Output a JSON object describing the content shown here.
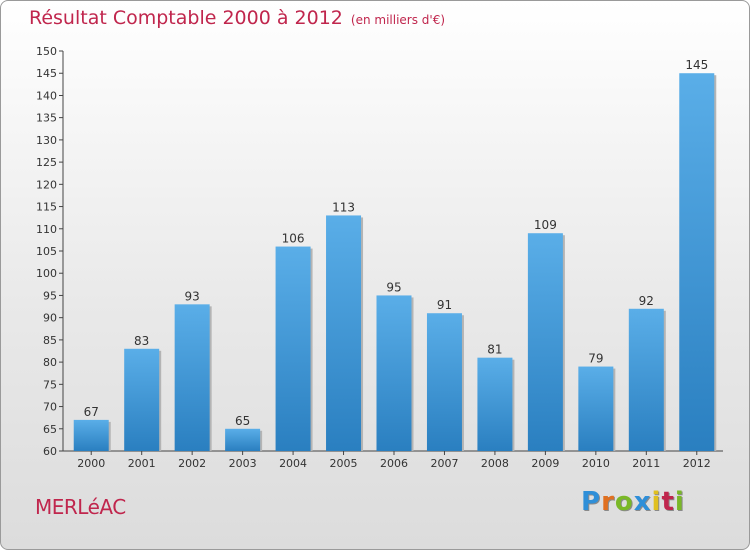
{
  "header": {
    "title": "Résultat Comptable 2000 à 2012",
    "subtitle": "(en milliers d'€)"
  },
  "footer": {
    "commune": "MERLéAC",
    "logo_text": "Proxiti"
  },
  "colors": {
    "title": "#c0264d",
    "bar_top": "#5aaee8",
    "bar_bottom": "#2a7fc0",
    "logo": [
      "#2f8fd8",
      "#e07020",
      "#7ab828",
      "#2f8fd8",
      "#e0c020",
      "#c0264d",
      "#7ab828"
    ]
  },
  "chart_data": {
    "type": "bar",
    "title": "Résultat Comptable 2000 à 2012",
    "xlabel": "",
    "ylabel": "",
    "categories": [
      "2000",
      "2001",
      "2002",
      "2003",
      "2004",
      "2005",
      "2006",
      "2007",
      "2008",
      "2009",
      "2010",
      "2011",
      "2012"
    ],
    "values": [
      67,
      83,
      93,
      65,
      106,
      113,
      95,
      91,
      81,
      109,
      79,
      92,
      145
    ],
    "ylim": [
      60,
      150
    ],
    "yticks": [
      60,
      65,
      70,
      75,
      80,
      85,
      90,
      95,
      100,
      105,
      110,
      115,
      120,
      125,
      130,
      135,
      140,
      145,
      150
    ],
    "grid": false,
    "legend": "none"
  }
}
